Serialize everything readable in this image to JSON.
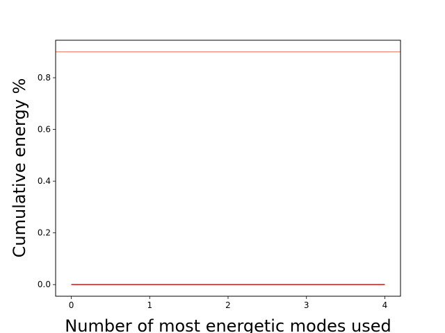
{
  "chart_data": {
    "type": "line",
    "title": "",
    "xlabel": "Number of most energetic modes used",
    "ylabel": "Cumulative energy %",
    "xlim": [
      -0.2,
      4.2
    ],
    "ylim": [
      -0.045,
      0.945
    ],
    "x_ticks": [
      0,
      1,
      2,
      3,
      4
    ],
    "x_tick_labels": [
      "0",
      "1",
      "2",
      "3",
      "4"
    ],
    "y_ticks": [
      0.0,
      0.2,
      0.4,
      0.6,
      0.8
    ],
    "y_tick_labels": [
      "0.0",
      "0.2",
      "0.4",
      "0.6",
      "0.8"
    ],
    "grid": false,
    "legend": "none",
    "series": [
      {
        "x": [
          0,
          1,
          2,
          3,
          4
        ],
        "values": [
          0.0,
          0.0,
          0.0,
          0.0,
          0.0
        ],
        "color": "#d62728"
      }
    ],
    "reference_lines": [
      {
        "orientation": "horizontal",
        "y": 0.9,
        "color": "#e8503c"
      }
    ]
  }
}
